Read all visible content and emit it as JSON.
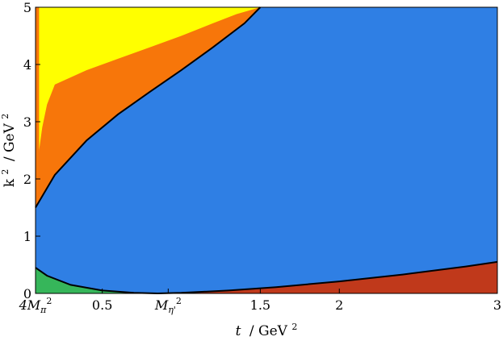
{
  "chart_data": {
    "type": "area",
    "xlabel_var": "t",
    "xlabel_unit": "/ GeV",
    "xlabel_exp": "2",
    "ylabel_var": "k",
    "ylabel_exp": "2",
    "ylabel_unit": "/ GeV",
    "ylabel_unit_exp": "2",
    "xlim": [
      0.0777,
      3.0
    ],
    "ylim": [
      0,
      5
    ],
    "x_ticks": [
      {
        "value": 0.0777,
        "label": "4M",
        "sub": "π",
        "sup": "2"
      },
      {
        "value": 0.5,
        "label": "0.5",
        "sub": "",
        "sup": ""
      },
      {
        "value": 0.9173,
        "label": "M",
        "sub": "η'",
        "sup": "2"
      },
      {
        "value": 1.5,
        "label": "1.5",
        "sub": "",
        "sup": ""
      },
      {
        "value": 2.0,
        "label": "2",
        "sub": "",
        "sup": ""
      },
      {
        "value": 3.0,
        "label": "3",
        "sub": "",
        "sup": ""
      }
    ],
    "y_ticks": [
      {
        "value": 0,
        "label": "0"
      },
      {
        "value": 1,
        "label": "1"
      },
      {
        "value": 2,
        "label": "2"
      },
      {
        "value": 3,
        "label": "3"
      },
      {
        "value": 4,
        "label": "4"
      },
      {
        "value": 5,
        "label": "5"
      }
    ],
    "colors": {
      "blue": "#2f7fe4",
      "yellow": "#ffff00",
      "orange": "#f7760a",
      "red": "#c0391b",
      "green": "#36b65a",
      "boundary": "#000000"
    },
    "curves": {
      "upper_boundary": {
        "x": [
          0.0777,
          0.2,
          0.4,
          0.6,
          0.8,
          1.0,
          1.2,
          1.4,
          1.5
        ],
        "y": [
          1.5,
          2.07,
          2.67,
          3.13,
          3.52,
          3.9,
          4.3,
          4.72,
          5.0
        ]
      },
      "lower_boundary": {
        "x": [
          0.0777,
          0.15,
          0.3,
          0.5,
          0.7,
          0.85,
          1.0,
          1.3,
          1.6,
          2.0,
          2.4,
          2.8,
          3.0
        ],
        "y": [
          0.45,
          0.31,
          0.15,
          0.05,
          0.01,
          0.0,
          0.01,
          0.05,
          0.11,
          0.21,
          0.33,
          0.47,
          0.55
        ]
      },
      "orange_band_outer": {
        "x": [
          0.0777,
          0.088,
          0.1,
          0.12,
          0.15,
          0.2,
          0.4,
          0.6,
          0.8,
          1.0,
          1.2,
          1.35,
          1.5
        ],
        "y": [
          1.5,
          2.2,
          2.5,
          2.9,
          3.3,
          3.65,
          3.9,
          4.1,
          4.3,
          4.5,
          4.72,
          4.88,
          5.0
        ]
      },
      "yellow_inner": {
        "x": [
          0.1,
          0.1,
          0.12,
          0.2,
          0.4,
          0.6,
          0.8,
          1.0,
          1.2,
          1.4,
          1.5
        ],
        "y": [
          5.0,
          2.2,
          2.1,
          2.23,
          2.79,
          3.25,
          3.65,
          4.05,
          4.46,
          4.86,
          5.0
        ]
      }
    }
  }
}
